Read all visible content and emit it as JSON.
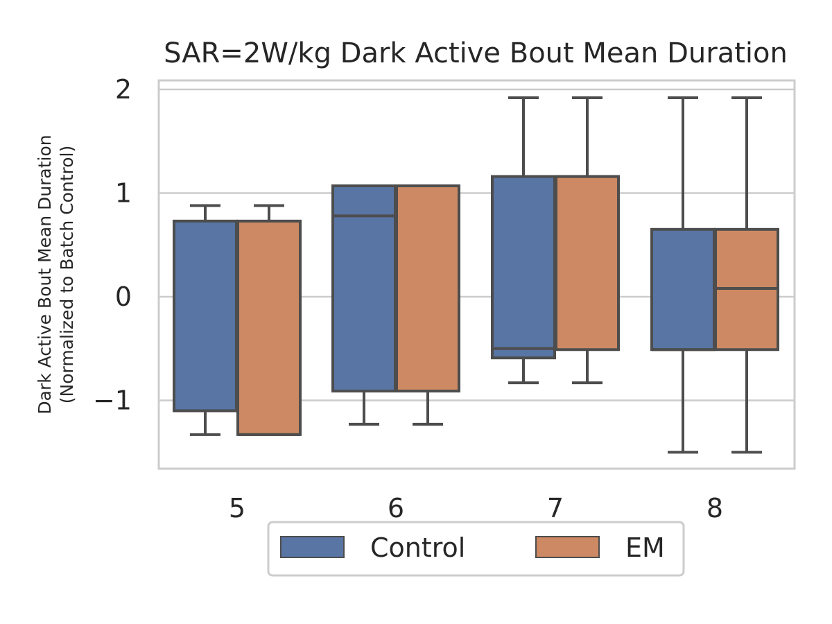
{
  "chart_data": {
    "type": "box",
    "title": "SAR=2W/kg Dark Active Bout Mean Duration",
    "xlabel": "",
    "ylabel_line1": "Dark Active Bout Mean Duration",
    "ylabel_line2": "(Normalized to Batch Control)",
    "ylim": [
      -1.65,
      2.1
    ],
    "yticks": [
      {
        "value": 2,
        "label": "2"
      },
      {
        "value": 1,
        "label": "1"
      },
      {
        "value": 0,
        "label": "0"
      },
      {
        "value": -1,
        "label": "−1"
      }
    ],
    "categories": [
      "5",
      "6",
      "7",
      "8"
    ],
    "grid": true,
    "legend_placement": "below",
    "series": [
      {
        "name": "Control",
        "color": "#5875a4",
        "boxes": [
          {
            "whisker_low": -1.33,
            "q1": -1.1,
            "median": -1.1,
            "q3": 0.73,
            "whisker_high": 0.88
          },
          {
            "whisker_low": -1.23,
            "q1": -0.91,
            "median": 0.78,
            "q3": 1.07,
            "whisker_high": 1.07
          },
          {
            "whisker_low": -0.83,
            "q1": -0.59,
            "median": -0.5,
            "q3": 1.16,
            "whisker_high": 1.92
          },
          {
            "whisker_low": -1.5,
            "q1": -0.51,
            "median": -0.51,
            "q3": 0.65,
            "whisker_high": 1.92
          }
        ]
      },
      {
        "name": "EM",
        "color": "#cc8963",
        "boxes": [
          {
            "whisker_low": -1.33,
            "q1": -1.33,
            "median": -1.33,
            "q3": 0.73,
            "whisker_high": 0.88
          },
          {
            "whisker_low": -1.23,
            "q1": -0.91,
            "median": 1.07,
            "q3": 1.07,
            "whisker_high": 1.07
          },
          {
            "whisker_low": -0.83,
            "q1": -0.51,
            "median": 1.16,
            "q3": 1.16,
            "whisker_high": 1.92
          },
          {
            "whisker_low": -1.5,
            "q1": -0.51,
            "median": 0.08,
            "q3": 0.65,
            "whisker_high": 1.92
          }
        ]
      }
    ],
    "colors": {
      "line": "#4d4d4d",
      "grid": "#cccccc",
      "frame": "#cccccc"
    }
  }
}
